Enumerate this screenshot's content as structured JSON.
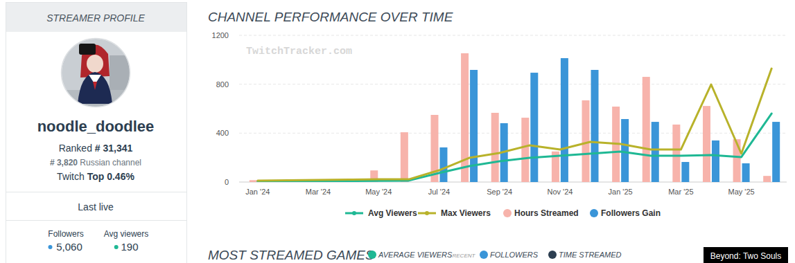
{
  "chart_data": {
    "type": "bar",
    "title": "CHANNEL PERFORMANCE OVER TIME",
    "categories": [
      "Jan '24",
      null,
      "Mar '24",
      null,
      "May '24",
      null,
      "Jul '24",
      null,
      "Sep '24",
      null,
      "Nov '24",
      null,
      "Jan '25",
      null,
      "Mar '25",
      null,
      "May '25",
      null
    ],
    "series": [
      {
        "name": "Avg Viewers",
        "type": "line",
        "color": "#1fb894",
        "values": [
          5,
          6,
          7,
          8,
          10,
          12,
          74,
          130,
          170,
          198,
          215,
          232,
          249,
          215,
          215,
          221,
          204,
          560
        ]
      },
      {
        "name": "Max Viewers",
        "type": "line",
        "color": "#b8b22a",
        "values": [
          11,
          14,
          17,
          20,
          22,
          22,
          96,
          198,
          238,
          300,
          266,
          328,
          311,
          266,
          266,
          798,
          232,
          928
        ]
      },
      {
        "name": "Hours Streamed",
        "type": "bar",
        "color": "#f7b3ab",
        "values": [
          15,
          0,
          0,
          0,
          95,
          407,
          549,
          1053,
          566,
          526,
          250,
          668,
          617,
          860,
          470,
          622,
          350,
          50
        ]
      },
      {
        "name": "Followers Gain",
        "type": "bar",
        "color": "#3a95d8",
        "values": [
          0,
          0,
          0,
          0,
          0,
          0,
          283,
          917,
          481,
          894,
          1013,
          917,
          515,
          492,
          164,
          340,
          153,
          492
        ]
      }
    ],
    "ylim": [
      0,
      1200
    ],
    "yticks": [
      0,
      400,
      800,
      1200
    ],
    "grid": true,
    "legend": "bottom"
  },
  "profile": {
    "header": "STREAMER PROFILE",
    "name": "noodle_doodlee",
    "rank_label": "Ranked",
    "rank": "# 31,341",
    "country_rank": "# 3,820",
    "country": "Russian channel",
    "top_label": "Twitch",
    "top": "Top 0.46%",
    "last_live": "Last live",
    "stats": [
      {
        "label": "Followers",
        "value": "5,060",
        "color": "#3a95d8"
      },
      {
        "label": "Avg viewers",
        "value": "190",
        "color": "#1fb894"
      }
    ]
  },
  "watermark": "TwitchTracker.com",
  "games": {
    "title": "MOST STREAMED GAMES",
    "legend": [
      {
        "label": "AVERAGE VIEWERS",
        "note": "RECENT",
        "color": "#1fb894"
      },
      {
        "label": "FOLLOWERS",
        "color": "#3a95d8"
      },
      {
        "label": "TIME STREAMED",
        "color": "#2c3e50"
      }
    ],
    "tooltip": "Beyond: Two Souls"
  }
}
